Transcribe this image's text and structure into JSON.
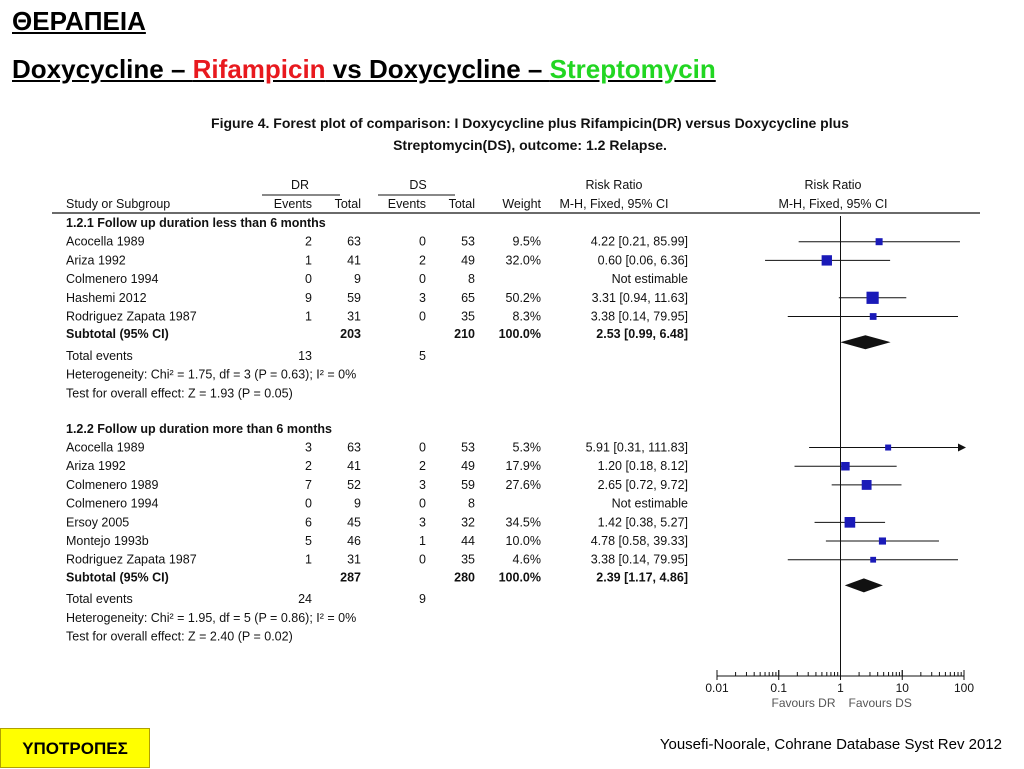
{
  "slide": {
    "title": "ΘΕΡΑΠΕΙΑ",
    "subtitle_parts": [
      "Doxycycline – ",
      "Rifampicin",
      " vs Doxycycline – ",
      "Streptomycin"
    ],
    "badge": "ΥΠΟΤΡΟΠΕΣ",
    "source": "Yousefi-Noorale, Cohrane Database Syst Rev 2012",
    "colors": {
      "rifampicin": "#e8191e",
      "streptomycin": "#22d622",
      "badge_bg": "#ffff00",
      "marker": "#1a1ab8"
    }
  },
  "figure": {
    "caption_line1": "Figure 4.   Forest plot of comparison: I Doxycycline plus Rifampicin(DR) versus Doxycycline plus",
    "caption_line2": "Streptomycin(DS), outcome: 1.2 Relapse."
  },
  "table": {
    "group_dr": "DR",
    "group_ds": "DS",
    "rr_header": "Risk Ratio",
    "rr_subheader": "M-H, Fixed, 95% CI",
    "plot_header": "Risk Ratio",
    "plot_subheader": "M-H, Fixed, 95% CI",
    "col_study": "Study or Subgroup",
    "col_events": "Events",
    "col_total": "Total",
    "col_weight": "Weight"
  },
  "chart_data": {
    "type": "forest",
    "x_scale": "log",
    "x_ticks": [
      "0.01",
      "0.1",
      "1",
      "10",
      "100"
    ],
    "x_tick_values": [
      0.01,
      0.1,
      1,
      10,
      100
    ],
    "xlim": [
      0.01,
      100
    ],
    "favours_left": "Favours DR",
    "favours_right": "Favours DS",
    "subgroups": [
      {
        "title": "1.2.1 Follow up duration less than 6 months",
        "studies": [
          {
            "study": "Acocella 1989",
            "dr_events": "2",
            "dr_total": "63",
            "ds_events": "0",
            "ds_total": "53",
            "weight": "9.5%",
            "rr_text": "4.22 [0.21, 85.99]",
            "rr": 4.22,
            "lo": 0.21,
            "hi": 85.99
          },
          {
            "study": "Ariza 1992",
            "dr_events": "1",
            "dr_total": "41",
            "ds_events": "2",
            "ds_total": "49",
            "weight": "32.0%",
            "rr_text": "0.60 [0.06, 6.36]",
            "rr": 0.6,
            "lo": 0.06,
            "hi": 6.36
          },
          {
            "study": "Colmenero 1994",
            "dr_events": "0",
            "dr_total": "9",
            "ds_events": "0",
            "ds_total": "8",
            "weight": "",
            "rr_text": "Not estimable",
            "rr": null,
            "lo": null,
            "hi": null
          },
          {
            "study": "Hashemi 2012",
            "dr_events": "9",
            "dr_total": "59",
            "ds_events": "3",
            "ds_total": "65",
            "weight": "50.2%",
            "rr_text": "3.31 [0.94, 11.63]",
            "rr": 3.31,
            "lo": 0.94,
            "hi": 11.63
          },
          {
            "study": "Rodriguez Zapata 1987",
            "dr_events": "1",
            "dr_total": "31",
            "ds_events": "0",
            "ds_total": "35",
            "weight": "8.3%",
            "rr_text": "3.38 [0.14, 79.95]",
            "rr": 3.38,
            "lo": 0.14,
            "hi": 79.95
          }
        ],
        "subtotal": {
          "label": "Subtotal (95% CI)",
          "dr_total": "203",
          "ds_total": "210",
          "weight": "100.0%",
          "rr_text": "2.53 [0.99, 6.48]",
          "rr": 2.53,
          "lo": 0.99,
          "hi": 6.48
        },
        "total_events_label": "Total events",
        "total_events_dr": "13",
        "total_events_ds": "5",
        "heterogeneity": "Heterogeneity: Chi² = 1.75, df = 3 (P = 0.63); I² = 0%",
        "overall": "Test for overall effect: Z = 1.93 (P = 0.05)"
      },
      {
        "title": "1.2.2 Follow up duration more than 6 months",
        "studies": [
          {
            "study": "Acocella 1989",
            "dr_events": "3",
            "dr_total": "63",
            "ds_events": "0",
            "ds_total": "53",
            "weight": "5.3%",
            "rr_text": "5.91 [0.31, 111.83]",
            "rr": 5.91,
            "lo": 0.31,
            "hi": 111.83
          },
          {
            "study": "Ariza 1992",
            "dr_events": "2",
            "dr_total": "41",
            "ds_events": "2",
            "ds_total": "49",
            "weight": "17.9%",
            "rr_text": "1.20 [0.18, 8.12]",
            "rr": 1.2,
            "lo": 0.18,
            "hi": 8.12
          },
          {
            "study": "Colmenero 1989",
            "dr_events": "7",
            "dr_total": "52",
            "ds_events": "3",
            "ds_total": "59",
            "weight": "27.6%",
            "rr_text": "2.65 [0.72, 9.72]",
            "rr": 2.65,
            "lo": 0.72,
            "hi": 9.72
          },
          {
            "study": "Colmenero 1994",
            "dr_events": "0",
            "dr_total": "9",
            "ds_events": "0",
            "ds_total": "8",
            "weight": "",
            "rr_text": "Not estimable",
            "rr": null,
            "lo": null,
            "hi": null
          },
          {
            "study": "Ersoy 2005",
            "dr_events": "6",
            "dr_total": "45",
            "ds_events": "3",
            "ds_total": "32",
            "weight": "34.5%",
            "rr_text": "1.42 [0.38, 5.27]",
            "rr": 1.42,
            "lo": 0.38,
            "hi": 5.27
          },
          {
            "study": "Montejo 1993b",
            "dr_events": "5",
            "dr_total": "46",
            "ds_events": "1",
            "ds_total": "44",
            "weight": "10.0%",
            "rr_text": "4.78 [0.58, 39.33]",
            "rr": 4.78,
            "lo": 0.58,
            "hi": 39.33
          },
          {
            "study": "Rodriguez Zapata 1987",
            "dr_events": "1",
            "dr_total": "31",
            "ds_events": "0",
            "ds_total": "35",
            "weight": "4.6%",
            "rr_text": "3.38 [0.14, 79.95]",
            "rr": 3.38,
            "lo": 0.14,
            "hi": 79.95
          }
        ],
        "subtotal": {
          "label": "Subtotal (95% CI)",
          "dr_total": "287",
          "ds_total": "280",
          "weight": "100.0%",
          "rr_text": "2.39 [1.17, 4.86]",
          "rr": 2.39,
          "lo": 1.17,
          "hi": 4.86
        },
        "total_events_label": "Total events",
        "total_events_dr": "24",
        "total_events_ds": "9",
        "heterogeneity": "Heterogeneity: Chi² = 1.95, df = 5 (P = 0.86); I² = 0%",
        "overall": "Test for overall effect: Z = 2.40 (P = 0.02)"
      }
    ]
  }
}
